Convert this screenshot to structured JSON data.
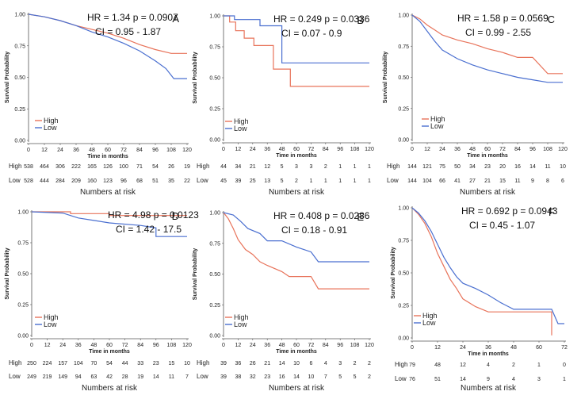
{
  "chart_data": [
    {
      "type": "line",
      "panel": "A",
      "title": "",
      "xlabel": "Time in months",
      "ylabel": "Survival Probability",
      "xlim": [
        0,
        120
      ],
      "ylim": [
        0,
        1
      ],
      "x_ticks": [
        0,
        12,
        24,
        36,
        48,
        60,
        72,
        84,
        96,
        108,
        120
      ],
      "y_ticks": [
        "0.00",
        "0.25",
        "0.50",
        "0.75",
        "1.00"
      ],
      "hr_text": "HR =  1.34 p = 0.0907",
      "ci_text": "CI =  0.95 - 1.87",
      "legend": [
        "High",
        "Low"
      ],
      "series": [
        {
          "name": "High",
          "color": "#e8735a",
          "points": [
            [
              0,
              1
            ],
            [
              12,
              0.98
            ],
            [
              24,
              0.95
            ],
            [
              36,
              0.91
            ],
            [
              48,
              0.88
            ],
            [
              60,
              0.85
            ],
            [
              72,
              0.81
            ],
            [
              84,
              0.76
            ],
            [
              96,
              0.72
            ],
            [
              108,
              0.69
            ],
            [
              120,
              0.69
            ]
          ]
        },
        {
          "name": "Low",
          "color": "#4a6fd0",
          "points": [
            [
              0,
              1
            ],
            [
              12,
              0.98
            ],
            [
              24,
              0.95
            ],
            [
              36,
              0.91
            ],
            [
              48,
              0.86
            ],
            [
              60,
              0.82
            ],
            [
              72,
              0.77
            ],
            [
              84,
              0.71
            ],
            [
              96,
              0.63
            ],
            [
              104,
              0.57
            ],
            [
              110,
              0.49
            ],
            [
              120,
              0.49
            ]
          ]
        }
      ],
      "risk_table": {
        "title": "Numbers at risk",
        "rows": [
          {
            "label": "High",
            "values": [
              "538",
              "464",
              "306",
              "222",
              "165",
              "126",
              "100",
              "71",
              "54",
              "26",
              "19"
            ]
          },
          {
            "label": "Low",
            "values": [
              "528",
              "444",
              "284",
              "209",
              "160",
              "123",
              "96",
              "68",
              "51",
              "35",
              "22"
            ]
          }
        ]
      }
    },
    {
      "type": "line",
      "panel": "B",
      "title": "",
      "xlabel": "Time in months",
      "ylabel": "Survival Probability",
      "xlim": [
        0,
        120
      ],
      "ylim": [
        0,
        1
      ],
      "x_ticks": [
        0,
        12,
        24,
        36,
        48,
        60,
        72,
        84,
        96,
        108,
        120
      ],
      "y_ticks": [
        "0.00",
        "0.25",
        "0.50",
        "0.75",
        "1.00"
      ],
      "hr_text": "HR =  0.249 p = 0.0336",
      "ci_text": "CI =  0.07 - 0.9",
      "legend": [
        "High",
        "Low"
      ],
      "series": [
        {
          "name": "High",
          "color": "#e8735a",
          "points": [
            [
              0,
              1
            ],
            [
              5,
              1
            ],
            [
              5,
              0.95
            ],
            [
              10,
              0.95
            ],
            [
              10,
              0.88
            ],
            [
              17,
              0.88
            ],
            [
              17,
              0.82
            ],
            [
              25,
              0.82
            ],
            [
              25,
              0.76
            ],
            [
              41,
              0.76
            ],
            [
              41,
              0.57
            ],
            [
              55,
              0.57
            ],
            [
              55,
              0.43
            ],
            [
              120,
              0.43
            ]
          ]
        },
        {
          "name": "Low",
          "color": "#4a6fd0",
          "points": [
            [
              0,
              1
            ],
            [
              9,
              1
            ],
            [
              9,
              0.97
            ],
            [
              30,
              0.97
            ],
            [
              30,
              0.92
            ],
            [
              48,
              0.92
            ],
            [
              48,
              0.62
            ],
            [
              120,
              0.62
            ]
          ]
        }
      ],
      "risk_table": {
        "title": "Numbers at risk",
        "rows": [
          {
            "label": "High",
            "values": [
              "44",
              "34",
              "21",
              "12",
              "5",
              "3",
              "3",
              "2",
              "1",
              "1",
              "1"
            ]
          },
          {
            "label": "Low",
            "values": [
              "45",
              "39",
              "25",
              "13",
              "5",
              "2",
              "1",
              "1",
              "1",
              "1",
              "1"
            ]
          }
        ]
      }
    },
    {
      "type": "line",
      "panel": "C",
      "title": "",
      "xlabel": "Time in months",
      "ylabel": "Survival Probability",
      "xlim": [
        0,
        120
      ],
      "ylim": [
        0,
        1
      ],
      "x_ticks": [
        0,
        12,
        24,
        36,
        48,
        60,
        72,
        84,
        96,
        108,
        120
      ],
      "y_ticks": [
        "0.00",
        "0.25",
        "0.50",
        "0.75",
        "1.00"
      ],
      "hr_text": "HR =  1.58 p = 0.0569",
      "ci_text": "CI =  0.99 - 2.55",
      "legend": [
        "High",
        "Low"
      ],
      "series": [
        {
          "name": "High",
          "color": "#e8735a",
          "points": [
            [
              0,
              1
            ],
            [
              6,
              0.97
            ],
            [
              12,
              0.92
            ],
            [
              18,
              0.88
            ],
            [
              24,
              0.84
            ],
            [
              36,
              0.8
            ],
            [
              48,
              0.77
            ],
            [
              60,
              0.73
            ],
            [
              72,
              0.7
            ],
            [
              84,
              0.66
            ],
            [
              96,
              0.66
            ],
            [
              108,
              0.53
            ],
            [
              120,
              0.53
            ]
          ]
        },
        {
          "name": "Low",
          "color": "#4a6fd0",
          "points": [
            [
              0,
              1
            ],
            [
              6,
              0.95
            ],
            [
              12,
              0.87
            ],
            [
              18,
              0.79
            ],
            [
              24,
              0.72
            ],
            [
              36,
              0.65
            ],
            [
              48,
              0.6
            ],
            [
              60,
              0.56
            ],
            [
              72,
              0.53
            ],
            [
              84,
              0.5
            ],
            [
              96,
              0.48
            ],
            [
              108,
              0.46
            ],
            [
              120,
              0.46
            ]
          ]
        }
      ],
      "risk_table": {
        "title": "Numbers at risk",
        "rows": [
          {
            "label": "High",
            "values": [
              "144",
              "121",
              "75",
              "50",
              "34",
              "23",
              "20",
              "16",
              "14",
              "11",
              "10"
            ]
          },
          {
            "label": "Low",
            "values": [
              "144",
              "104",
              "66",
              "41",
              "27",
              "21",
              "15",
              "11",
              "9",
              "8",
              "6"
            ]
          }
        ]
      }
    },
    {
      "type": "line",
      "panel": "D",
      "title": "",
      "xlabel": "Time in months",
      "ylabel": "Survival Probability",
      "xlim": [
        0,
        120
      ],
      "ylim": [
        0,
        1
      ],
      "x_ticks": [
        0,
        12,
        24,
        36,
        48,
        60,
        72,
        84,
        96,
        108,
        120
      ],
      "y_ticks": [
        "0.00",
        "0.25",
        "0.50",
        "0.75",
        "1.00"
      ],
      "hr_text": "HR =  4.98 p = 0.0123",
      "ci_text": "CI =  1.42 - 17.5",
      "legend": [
        "High",
        "Low"
      ],
      "series": [
        {
          "name": "High",
          "color": "#e8735a",
          "points": [
            [
              0,
              1
            ],
            [
              30,
              1
            ],
            [
              30,
              0.985
            ],
            [
              60,
              0.985
            ],
            [
              60,
              0.97
            ],
            [
              120,
              0.97
            ]
          ]
        },
        {
          "name": "Low",
          "color": "#4a6fd0",
          "points": [
            [
              0,
              1
            ],
            [
              24,
              0.99
            ],
            [
              36,
              0.95
            ],
            [
              48,
              0.93
            ],
            [
              60,
              0.91
            ],
            [
              84,
              0.89
            ],
            [
              96,
              0.87
            ],
            [
              96,
              0.8
            ],
            [
              120,
              0.8
            ]
          ]
        }
      ],
      "risk_table": {
        "title": "Numbers at risk",
        "rows": [
          {
            "label": "High",
            "values": [
              "250",
              "224",
              "157",
              "104",
              "70",
              "54",
              "44",
              "33",
              "23",
              "15",
              "10"
            ]
          },
          {
            "label": "Low",
            "values": [
              "249",
              "219",
              "149",
              "94",
              "63",
              "42",
              "28",
              "19",
              "14",
              "11",
              "7"
            ]
          }
        ]
      }
    },
    {
      "type": "line",
      "panel": "E",
      "title": "",
      "xlabel": "Time in months",
      "ylabel": "Survival Probability",
      "xlim": [
        0,
        120
      ],
      "ylim": [
        0,
        1
      ],
      "x_ticks": [
        0,
        12,
        24,
        36,
        48,
        60,
        72,
        84,
        96,
        108,
        120
      ],
      "y_ticks": [
        "0.00",
        "0.25",
        "0.50",
        "0.75",
        "1.00"
      ],
      "hr_text": "HR =  0.408 p = 0.0286",
      "ci_text": "CI =  0.18 - 0.91",
      "legend": [
        "High",
        "Low"
      ],
      "series": [
        {
          "name": "High",
          "color": "#e8735a",
          "points": [
            [
              0,
              1
            ],
            [
              4,
              0.95
            ],
            [
              8,
              0.87
            ],
            [
              12,
              0.78
            ],
            [
              18,
              0.7
            ],
            [
              24,
              0.66
            ],
            [
              30,
              0.6
            ],
            [
              36,
              0.57
            ],
            [
              48,
              0.52
            ],
            [
              54,
              0.48
            ],
            [
              72,
              0.48
            ],
            [
              78,
              0.38
            ],
            [
              120,
              0.38
            ]
          ]
        },
        {
          "name": "Low",
          "color": "#4a6fd0",
          "points": [
            [
              0,
              1
            ],
            [
              8,
              0.98
            ],
            [
              14,
              0.93
            ],
            [
              20,
              0.87
            ],
            [
              30,
              0.83
            ],
            [
              36,
              0.77
            ],
            [
              48,
              0.77
            ],
            [
              60,
              0.72
            ],
            [
              72,
              0.68
            ],
            [
              78,
              0.6
            ],
            [
              120,
              0.6
            ]
          ]
        }
      ],
      "risk_table": {
        "title": "Numbers at risk",
        "rows": [
          {
            "label": "High",
            "values": [
              "39",
              "36",
              "26",
              "21",
              "14",
              "10",
              "6",
              "4",
              "3",
              "2",
              "2"
            ]
          },
          {
            "label": "Low",
            "values": [
              "39",
              "38",
              "32",
              "23",
              "16",
              "14",
              "10",
              "7",
              "5",
              "5",
              "2"
            ]
          }
        ]
      }
    },
    {
      "type": "line",
      "panel": "F",
      "title": "",
      "xlabel": "Time in months",
      "ylabel": "Survival Probability",
      "xlim": [
        0,
        72
      ],
      "ylim": [
        0,
        1
      ],
      "x_ticks": [
        0,
        12,
        24,
        36,
        48,
        60,
        72
      ],
      "y_ticks": [
        "0.00",
        "0.25",
        "0.50",
        "0.75",
        "1.00"
      ],
      "hr_text": "HR =  0.692 p = 0.0943",
      "ci_text": "CI =  0.45 - 1.07",
      "legend": [
        "High",
        "Low"
      ],
      "series": [
        {
          "name": "High",
          "color": "#e8735a",
          "points": [
            [
              0,
              1
            ],
            [
              3,
              0.95
            ],
            [
              6,
              0.88
            ],
            [
              9,
              0.78
            ],
            [
              12,
              0.65
            ],
            [
              15,
              0.55
            ],
            [
              18,
              0.45
            ],
            [
              21,
              0.38
            ],
            [
              24,
              0.3
            ],
            [
              30,
              0.24
            ],
            [
              36,
              0.2
            ],
            [
              48,
              0.2
            ],
            [
              66,
              0.2
            ],
            [
              66,
              0.02
            ]
          ]
        },
        {
          "name": "Low",
          "color": "#4a6fd0",
          "points": [
            [
              0,
              1
            ],
            [
              3,
              0.96
            ],
            [
              6,
              0.9
            ],
            [
              9,
              0.82
            ],
            [
              12,
              0.72
            ],
            [
              15,
              0.62
            ],
            [
              18,
              0.54
            ],
            [
              21,
              0.47
            ],
            [
              24,
              0.42
            ],
            [
              30,
              0.38
            ],
            [
              36,
              0.33
            ],
            [
              42,
              0.27
            ],
            [
              48,
              0.22
            ],
            [
              66,
              0.22
            ],
            [
              69,
              0.11
            ],
            [
              72,
              0.11
            ]
          ]
        }
      ],
      "risk_table": {
        "title": "Numbers at risk",
        "rows": [
          {
            "label": "High",
            "values": [
              "79",
              "48",
              "12",
              "4",
              "2",
              "1",
              "0"
            ]
          },
          {
            "label": "Low",
            "values": [
              "76",
              "51",
              "14",
              "9",
              "4",
              "3",
              "1"
            ]
          }
        ]
      }
    }
  ]
}
